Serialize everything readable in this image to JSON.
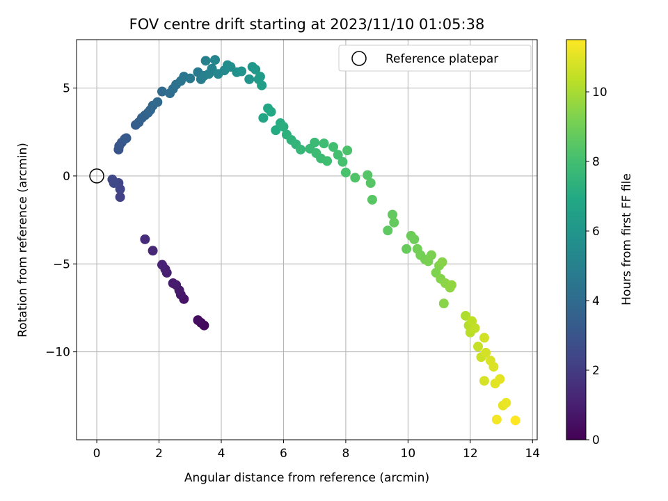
{
  "chart_data": {
    "type": "scatter",
    "title": "FOV centre drift starting at 2023/11/10 01:05:38",
    "xlabel": "Angular distance from reference (arcmin)",
    "ylabel": "Rotation from reference (arcmin)",
    "xlim": [
      -0.65,
      14.15
    ],
    "ylim": [
      -15.0,
      7.75
    ],
    "x_ticks": [
      0,
      2,
      4,
      6,
      8,
      10,
      12,
      14
    ],
    "y_ticks": [
      5,
      0,
      -5,
      -10
    ],
    "grid": true,
    "legend": {
      "placement": "top-right",
      "entries": [
        "Reference platepar"
      ]
    },
    "reference": {
      "x": 0,
      "y": 0
    },
    "colorbar": {
      "label": "Hours from first FF file",
      "colormap": "viridis",
      "range": [
        0,
        11.5
      ],
      "ticks": [
        0,
        2,
        4,
        6,
        8,
        10
      ]
    },
    "series": [
      {
        "values": [
          [
            3.45,
            -8.5,
            0.2
          ],
          [
            3.35,
            -8.35,
            0.3
          ],
          [
            3.25,
            -8.2,
            0.4
          ],
          [
            2.8,
            -7.0,
            0.6
          ],
          [
            2.7,
            -6.75,
            0.7
          ],
          [
            2.65,
            -6.5,
            0.8
          ],
          [
            2.55,
            -6.2,
            0.85
          ],
          [
            2.45,
            -6.1,
            0.9
          ],
          [
            2.25,
            -5.5,
            1.0
          ],
          [
            2.2,
            -5.3,
            1.05
          ],
          [
            2.1,
            -5.05,
            1.1
          ],
          [
            1.8,
            -4.25,
            1.3
          ],
          [
            1.55,
            -3.6,
            1.45
          ],
          [
            0.75,
            -1.2,
            2.2
          ],
          [
            0.75,
            -0.75,
            2.3
          ],
          [
            0.7,
            -0.4,
            2.4
          ],
          [
            0.55,
            -0.4,
            2.45
          ],
          [
            0.5,
            -0.2,
            2.5
          ],
          [
            0.7,
            1.5,
            3.0
          ],
          [
            0.72,
            1.7,
            3.05
          ],
          [
            0.8,
            1.9,
            3.1
          ],
          [
            0.9,
            2.1,
            3.2
          ],
          [
            0.95,
            2.15,
            3.25
          ],
          [
            1.25,
            2.9,
            3.4
          ],
          [
            1.35,
            3.05,
            3.5
          ],
          [
            1.45,
            3.3,
            3.6
          ],
          [
            1.55,
            3.45,
            3.65
          ],
          [
            1.65,
            3.6,
            3.7
          ],
          [
            1.72,
            3.75,
            3.75
          ],
          [
            1.8,
            4.0,
            3.8
          ],
          [
            1.95,
            4.2,
            3.9
          ],
          [
            2.1,
            4.8,
            4.0
          ],
          [
            2.35,
            4.7,
            4.1
          ],
          [
            2.45,
            4.95,
            4.2
          ],
          [
            2.55,
            5.2,
            4.3
          ],
          [
            2.7,
            5.4,
            4.4
          ],
          [
            2.8,
            5.65,
            4.5
          ],
          [
            3.0,
            5.55,
            4.6
          ],
          [
            3.25,
            5.9,
            4.7
          ],
          [
            3.35,
            5.5,
            4.8
          ],
          [
            3.45,
            5.7,
            4.9
          ],
          [
            3.5,
            6.55,
            5.0
          ],
          [
            3.6,
            5.8,
            5.05
          ],
          [
            3.7,
            6.1,
            5.1
          ],
          [
            3.8,
            6.6,
            5.2
          ],
          [
            3.9,
            5.8,
            5.3
          ],
          [
            4.1,
            6.0,
            5.4
          ],
          [
            4.2,
            6.3,
            5.5
          ],
          [
            4.3,
            6.2,
            5.6
          ],
          [
            4.5,
            5.9,
            5.7
          ],
          [
            4.65,
            5.95,
            5.8
          ],
          [
            4.9,
            5.5,
            5.9
          ],
          [
            5.0,
            6.2,
            6.0
          ],
          [
            5.1,
            6.05,
            6.1
          ],
          [
            5.2,
            5.5,
            6.2
          ],
          [
            5.25,
            5.65,
            6.3
          ],
          [
            5.3,
            5.15,
            6.4
          ],
          [
            5.35,
            3.3,
            6.7
          ],
          [
            5.5,
            3.85,
            6.8
          ],
          [
            5.6,
            3.65,
            6.9
          ],
          [
            5.75,
            2.6,
            7.0
          ],
          [
            5.9,
            3.0,
            7.1
          ],
          [
            6.0,
            2.8,
            7.2
          ],
          [
            6.1,
            2.35,
            7.3
          ],
          [
            6.25,
            2.05,
            7.4
          ],
          [
            6.4,
            1.8,
            7.5
          ],
          [
            6.55,
            1.5,
            7.6
          ],
          [
            6.85,
            1.55,
            7.7
          ],
          [
            7.0,
            1.9,
            7.75
          ],
          [
            7.05,
            1.3,
            7.8
          ],
          [
            7.2,
            1.0,
            7.85
          ],
          [
            7.3,
            1.85,
            7.9
          ],
          [
            7.4,
            0.85,
            7.95
          ],
          [
            7.6,
            1.65,
            8.0
          ],
          [
            7.75,
            1.2,
            8.05
          ],
          [
            7.9,
            0.8,
            8.1
          ],
          [
            8.0,
            0.2,
            8.15
          ],
          [
            8.05,
            1.45,
            8.2
          ],
          [
            8.3,
            -0.1,
            8.3
          ],
          [
            8.7,
            0.05,
            8.4
          ],
          [
            8.8,
            -0.4,
            8.45
          ],
          [
            8.85,
            -1.35,
            8.5
          ],
          [
            9.35,
            -3.1,
            8.6
          ],
          [
            9.5,
            -2.2,
            8.7
          ],
          [
            9.55,
            -2.65,
            8.75
          ],
          [
            9.95,
            -4.15,
            8.8
          ],
          [
            10.1,
            -3.4,
            8.9
          ],
          [
            10.2,
            -3.6,
            8.95
          ],
          [
            10.3,
            -4.15,
            9.0
          ],
          [
            10.4,
            -4.5,
            9.05
          ],
          [
            10.55,
            -4.75,
            9.1
          ],
          [
            10.65,
            -4.85,
            9.15
          ],
          [
            10.75,
            -4.5,
            9.2
          ],
          [
            10.9,
            -5.5,
            9.25
          ],
          [
            11.0,
            -5.1,
            9.3
          ],
          [
            11.05,
            -5.85,
            9.35
          ],
          [
            11.1,
            -4.9,
            9.4
          ],
          [
            11.15,
            -7.25,
            9.45
          ],
          [
            11.2,
            -6.1,
            9.5
          ],
          [
            11.35,
            -6.35,
            9.55
          ],
          [
            11.4,
            -6.2,
            9.6
          ],
          [
            11.85,
            -7.95,
            10.1
          ],
          [
            11.95,
            -8.5,
            10.2
          ],
          [
            12.0,
            -8.9,
            10.3
          ],
          [
            12.05,
            -8.25,
            10.35
          ],
          [
            12.15,
            -8.65,
            10.4
          ],
          [
            12.25,
            -9.7,
            10.5
          ],
          [
            12.35,
            -10.3,
            10.6
          ],
          [
            12.45,
            -9.2,
            10.7
          ],
          [
            12.5,
            -10.05,
            10.75
          ],
          [
            12.45,
            -11.65,
            10.8
          ],
          [
            12.65,
            -10.5,
            10.85
          ],
          [
            12.75,
            -10.85,
            10.9
          ],
          [
            12.8,
            -11.8,
            11.0
          ],
          [
            12.95,
            -11.55,
            11.05
          ],
          [
            13.05,
            -13.05,
            11.1
          ],
          [
            13.15,
            -12.9,
            11.15
          ],
          [
            12.85,
            -13.85,
            11.3
          ],
          [
            13.45,
            -13.9,
            11.5
          ]
        ]
      }
    ]
  }
}
